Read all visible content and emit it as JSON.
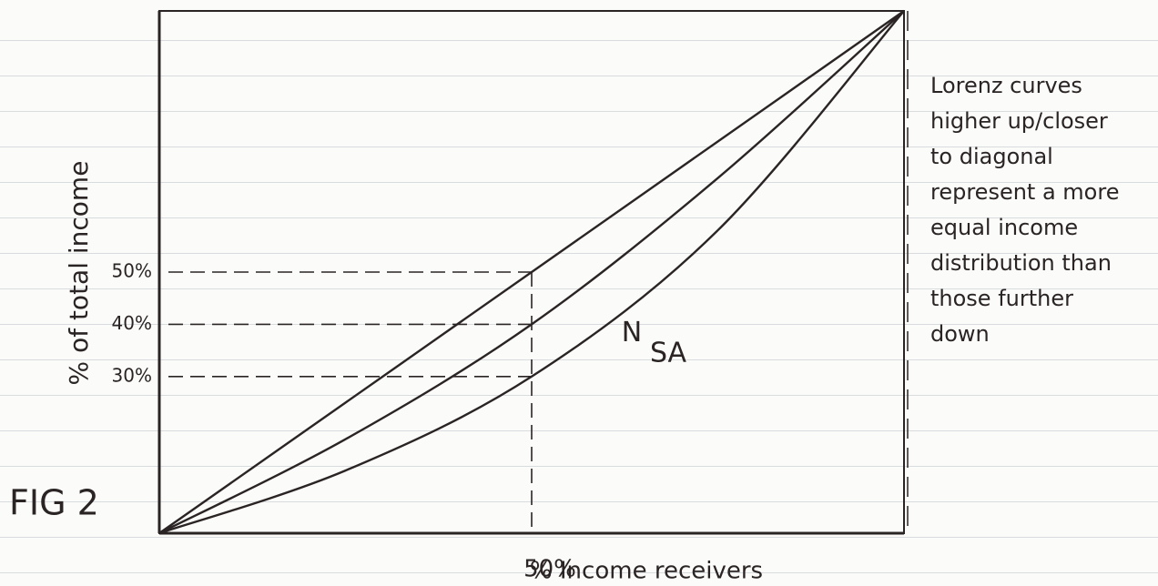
{
  "chart_data": {
    "type": "line",
    "y_label": "% of total income",
    "x_label": "% Income receivers",
    "x": [
      0,
      25,
      50,
      75,
      100
    ],
    "series": [
      {
        "values": [
          0,
          25,
          50,
          75,
          100
        ],
        "color": "#2a2424"
      },
      {
        "name": "N",
        "values": [
          0,
          18,
          40,
          68,
          100
        ],
        "color": "#2a2424"
      },
      {
        "name": "SA",
        "values": [
          0,
          12,
          30,
          58,
          100
        ],
        "color": "#2a2424"
      }
    ],
    "xlim": [
      0,
      100
    ],
    "ylim": [
      0,
      100
    ],
    "xticks": [
      {
        "value": 50,
        "label": "50%"
      }
    ],
    "yticks": [
      {
        "value": 30,
        "label": "30%"
      },
      {
        "value": 40,
        "label": "40%"
      },
      {
        "value": 50,
        "label": "50%"
      }
    ],
    "figure_label": "FIG 2",
    "note": [
      "Lorenz curves",
      "higher up/closer",
      "to diagonal",
      "represent a more",
      "equal income",
      "distribution than",
      "those further",
      "down"
    ]
  }
}
